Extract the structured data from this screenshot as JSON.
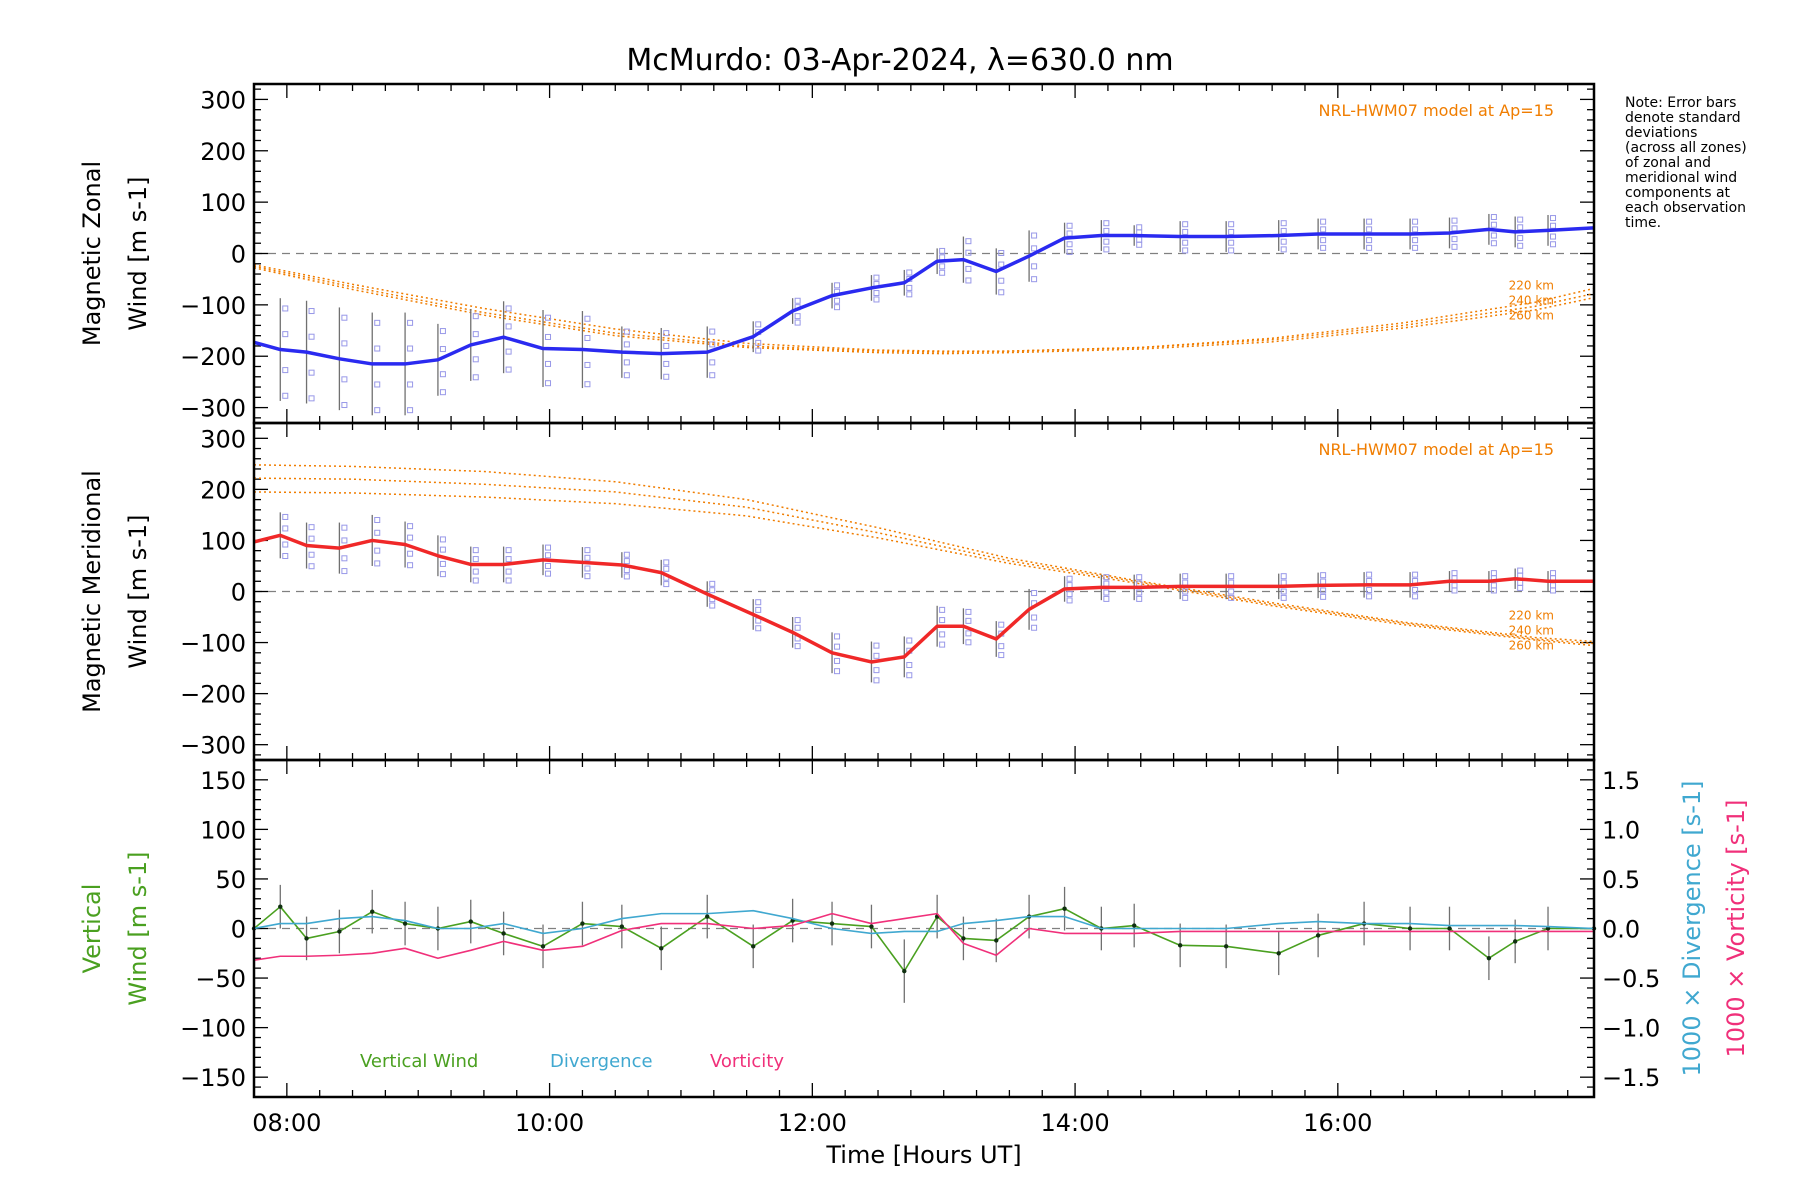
{
  "title": "McMurdo: 03-Apr-2024, λ=630.0 nm",
  "note": "Note: Error bars\ndenote standard\ndeviations\n(across all zones)\nof zonal and\nmeridional wind\ncomponents at\neach observation\ntime.",
  "colors": {
    "zonal": "#2a2af0",
    "meridional": "#f02828",
    "model": "#f07d00",
    "vertical": "#4aa020",
    "divergence": "#40a8d0",
    "vorticity": "#f0307a",
    "scatter": "#9898e8",
    "zero_line": "#808080"
  },
  "chart_data": [
    {
      "type": "line",
      "panel": "zonal",
      "ylabel_lines": [
        "Magnetic Zonal",
        "Wind [m s-1]"
      ],
      "ylim": [
        -330,
        330
      ],
      "yticks": [
        -300,
        -200,
        -100,
        0,
        100,
        200,
        300
      ],
      "xlim": [
        7.75,
        17.95
      ],
      "model_label": "NRL-HWM07 model at Ap=15",
      "model_heights": [
        "220 km",
        "240 km",
        "260 km"
      ],
      "series": [
        {
          "x": [
            7.75,
            7.95,
            8.15,
            8.4,
            8.65,
            8.9,
            9.15,
            9.4,
            9.65,
            9.95,
            10.25,
            10.55,
            10.85,
            11.2,
            11.55,
            11.85,
            12.15,
            12.45,
            12.7,
            12.95,
            13.15,
            13.4,
            13.65,
            13.92,
            14.2,
            14.45,
            14.8,
            15.15,
            15.55,
            15.85,
            16.2,
            16.55,
            16.85,
            17.15,
            17.35,
            17.6,
            17.95
          ],
          "y": [
            -173,
            -187,
            -192,
            -205,
            -215,
            -215,
            -207,
            -178,
            -163,
            -185,
            -187,
            -192,
            -195,
            -192,
            -162,
            -112,
            -82,
            -67,
            -57,
            -15,
            -12,
            -35,
            -5,
            30,
            35,
            35,
            33,
            33,
            35,
            38,
            38,
            38,
            40,
            47,
            42,
            45,
            50
          ],
          "err": [
            0,
            100,
            100,
            100,
            100,
            100,
            70,
            70,
            70,
            75,
            75,
            50,
            50,
            50,
            30,
            25,
            25,
            25,
            25,
            25,
            45,
            45,
            50,
            30,
            30,
            20,
            30,
            30,
            30,
            30,
            30,
            30,
            30,
            30,
            30,
            30,
            0
          ]
        }
      ],
      "model": [
        {
          "height": "220 km",
          "x": [
            7.75,
            8.5,
            9.5,
            10.5,
            11.5,
            12.5,
            13.0,
            13.5,
            14.5,
            15.5,
            16.5,
            17.5,
            17.95
          ],
          "y": [
            -22,
            -60,
            -107,
            -147,
            -175,
            -188,
            -190,
            -190,
            -183,
            -165,
            -135,
            -95,
            -68
          ]
        },
        {
          "height": "240 km",
          "x": [
            7.75,
            8.5,
            9.5,
            10.5,
            11.5,
            12.5,
            13.0,
            13.5,
            14.5,
            15.5,
            16.5,
            17.5,
            17.95
          ],
          "y": [
            -25,
            -65,
            -115,
            -155,
            -180,
            -190,
            -192,
            -190,
            -183,
            -168,
            -140,
            -103,
            -78
          ]
        },
        {
          "height": "260 km",
          "x": [
            7.75,
            8.5,
            9.5,
            10.5,
            11.5,
            12.5,
            13.0,
            13.5,
            14.5,
            15.5,
            16.5,
            17.5,
            17.95
          ],
          "y": [
            -28,
            -70,
            -120,
            -160,
            -183,
            -193,
            -195,
            -193,
            -186,
            -172,
            -145,
            -110,
            -86
          ]
        }
      ]
    },
    {
      "type": "line",
      "panel": "meridional",
      "ylabel_lines": [
        "Magnetic Meridional",
        "Wind [m s-1]"
      ],
      "ylim": [
        -330,
        330
      ],
      "yticks": [
        -300,
        -200,
        -100,
        0,
        100,
        200,
        300
      ],
      "xlim": [
        7.75,
        17.95
      ],
      "model_label": "NRL-HWM07 model at Ap=15",
      "model_heights": [
        "220 km",
        "240 km",
        "260 km"
      ],
      "series": [
        {
          "x": [
            7.75,
            7.95,
            8.15,
            8.4,
            8.65,
            8.9,
            9.15,
            9.4,
            9.65,
            9.95,
            10.25,
            10.55,
            10.85,
            11.2,
            11.55,
            11.85,
            12.15,
            12.45,
            12.7,
            12.95,
            13.15,
            13.4,
            13.65,
            13.92,
            14.2,
            14.45,
            14.8,
            15.15,
            15.55,
            15.85,
            16.2,
            16.55,
            16.85,
            17.15,
            17.35,
            17.6,
            17.95
          ],
          "y": [
            97,
            110,
            90,
            85,
            100,
            92,
            70,
            53,
            53,
            62,
            57,
            52,
            37,
            -5,
            -45,
            -80,
            -120,
            -138,
            -128,
            -68,
            -68,
            -93,
            -35,
            5,
            8,
            8,
            10,
            10,
            10,
            12,
            13,
            13,
            20,
            20,
            25,
            20,
            20
          ],
          "err": [
            0,
            45,
            45,
            50,
            50,
            45,
            40,
            35,
            35,
            30,
            30,
            25,
            25,
            25,
            30,
            30,
            40,
            40,
            40,
            40,
            35,
            35,
            40,
            25,
            25,
            25,
            25,
            25,
            25,
            25,
            25,
            25,
            20,
            20,
            20,
            20,
            0
          ]
        }
      ],
      "model": [
        {
          "height": "220 km",
          "x": [
            7.75,
            8.5,
            9.5,
            10.5,
            11.5,
            12.5,
            13.5,
            14.5,
            15.5,
            16.5,
            17.5,
            17.95
          ],
          "y": [
            248,
            245,
            235,
            215,
            180,
            125,
            65,
            20,
            -22,
            -60,
            -90,
            -98
          ]
        },
        {
          "height": "240 km",
          "x": [
            7.75,
            8.5,
            9.5,
            10.5,
            11.5,
            12.5,
            13.5,
            14.5,
            15.5,
            16.5,
            17.5,
            17.95
          ],
          "y": [
            222,
            220,
            210,
            195,
            165,
            115,
            60,
            18,
            -25,
            -62,
            -93,
            -102
          ]
        },
        {
          "height": "260 km",
          "x": [
            7.75,
            8.5,
            9.5,
            10.5,
            11.5,
            12.5,
            13.5,
            14.5,
            15.5,
            16.5,
            17.5,
            17.95
          ],
          "y": [
            195,
            193,
            185,
            172,
            148,
            105,
            55,
            15,
            -28,
            -65,
            -95,
            -106
          ]
        }
      ]
    },
    {
      "type": "line",
      "panel": "vertical",
      "ylabel_lines": [
        "Vertical",
        "Wind [m s-1]"
      ],
      "y2label_lines": [
        "1000 × Divergence [s-1]",
        "1000 × Vorticity [s-1]"
      ],
      "ylim": [
        -170,
        170
      ],
      "yticks": [
        -150,
        -100,
        -50,
        0,
        50,
        100,
        150
      ],
      "y2lim": [
        -1.7,
        1.7
      ],
      "y2ticks": [
        -1.5,
        -1.0,
        -0.5,
        0.0,
        0.5,
        1.0,
        1.5
      ],
      "xlim": [
        7.75,
        17.95
      ],
      "xticks": [
        "08:00",
        "10:00",
        "12:00",
        "14:00",
        "16:00"
      ],
      "xtick_values": [
        8,
        10,
        12,
        14,
        16
      ],
      "xlabel": "Time [Hours UT]",
      "legend": [
        "Vertical Wind",
        "Divergence",
        "Vorticity"
      ],
      "series": [
        {
          "name": "Vertical Wind",
          "axis": "left",
          "x": [
            7.75,
            7.95,
            8.15,
            8.4,
            8.65,
            8.9,
            9.15,
            9.4,
            9.65,
            9.95,
            10.25,
            10.55,
            10.85,
            11.2,
            11.55,
            11.85,
            12.15,
            12.45,
            12.7,
            12.95,
            13.15,
            13.4,
            13.65,
            13.92,
            14.2,
            14.45,
            14.8,
            15.15,
            15.55,
            15.85,
            16.2,
            16.55,
            16.85,
            17.15,
            17.35,
            17.6,
            17.95
          ],
          "y": [
            0,
            22,
            -10,
            -3,
            17,
            5,
            0,
            7,
            -5,
            -18,
            5,
            2,
            -20,
            12,
            -18,
            8,
            5,
            2,
            -43,
            12,
            -10,
            -12,
            12,
            20,
            0,
            3,
            -17,
            -18,
            -25,
            -7,
            5,
            0,
            0,
            -30,
            -13,
            0,
            0
          ],
          "err": [
            0,
            22,
            22,
            22,
            22,
            22,
            22,
            22,
            22,
            22,
            22,
            22,
            22,
            22,
            22,
            22,
            22,
            22,
            32,
            22,
            22,
            22,
            22,
            22,
            22,
            22,
            22,
            22,
            22,
            22,
            22,
            22,
            22,
            22,
            22,
            22,
            0
          ]
        },
        {
          "name": "Divergence",
          "axis": "right",
          "x": [
            7.75,
            7.95,
            8.15,
            8.4,
            8.65,
            8.9,
            9.15,
            9.4,
            9.65,
            9.95,
            10.25,
            10.55,
            10.85,
            11.2,
            11.55,
            11.85,
            12.15,
            12.45,
            12.7,
            12.95,
            13.15,
            13.4,
            13.65,
            13.92,
            14.2,
            14.45,
            14.8,
            15.15,
            15.55,
            15.85,
            16.2,
            16.55,
            16.85,
            17.15,
            17.35,
            17.6,
            17.95
          ],
          "y": [
            0.0,
            0.05,
            0.05,
            0.1,
            0.12,
            0.08,
            0.0,
            0.0,
            0.05,
            -0.05,
            0.0,
            0.1,
            0.15,
            0.15,
            0.18,
            0.1,
            0.0,
            -0.05,
            -0.03,
            -0.03,
            0.05,
            0.08,
            0.12,
            0.12,
            0.0,
            0.0,
            0.0,
            0.0,
            0.05,
            0.07,
            0.05,
            0.05,
            0.03,
            0.03,
            0.03,
            0.02,
            0.0
          ]
        },
        {
          "name": "Vorticity",
          "axis": "right",
          "x": [
            7.75,
            7.95,
            8.15,
            8.4,
            8.65,
            8.9,
            9.15,
            9.4,
            9.65,
            9.95,
            10.25,
            10.55,
            10.85,
            11.2,
            11.55,
            11.85,
            12.15,
            12.45,
            12.7,
            12.95,
            13.15,
            13.4,
            13.65,
            13.92,
            14.2,
            14.45,
            14.8,
            15.15,
            15.55,
            15.85,
            16.2,
            16.55,
            16.85,
            17.15,
            17.35,
            17.6,
            17.95
          ],
          "y": [
            -0.32,
            -0.28,
            -0.28,
            -0.27,
            -0.25,
            -0.2,
            -0.3,
            -0.22,
            -0.13,
            -0.22,
            -0.18,
            -0.02,
            0.05,
            0.05,
            0.0,
            0.03,
            0.15,
            0.05,
            0.1,
            0.15,
            -0.15,
            -0.27,
            0.0,
            -0.05,
            -0.05,
            -0.05,
            -0.03,
            -0.03,
            -0.03,
            -0.03,
            -0.03,
            -0.03,
            -0.03,
            -0.03,
            -0.03,
            -0.03,
            -0.03
          ]
        }
      ]
    }
  ]
}
